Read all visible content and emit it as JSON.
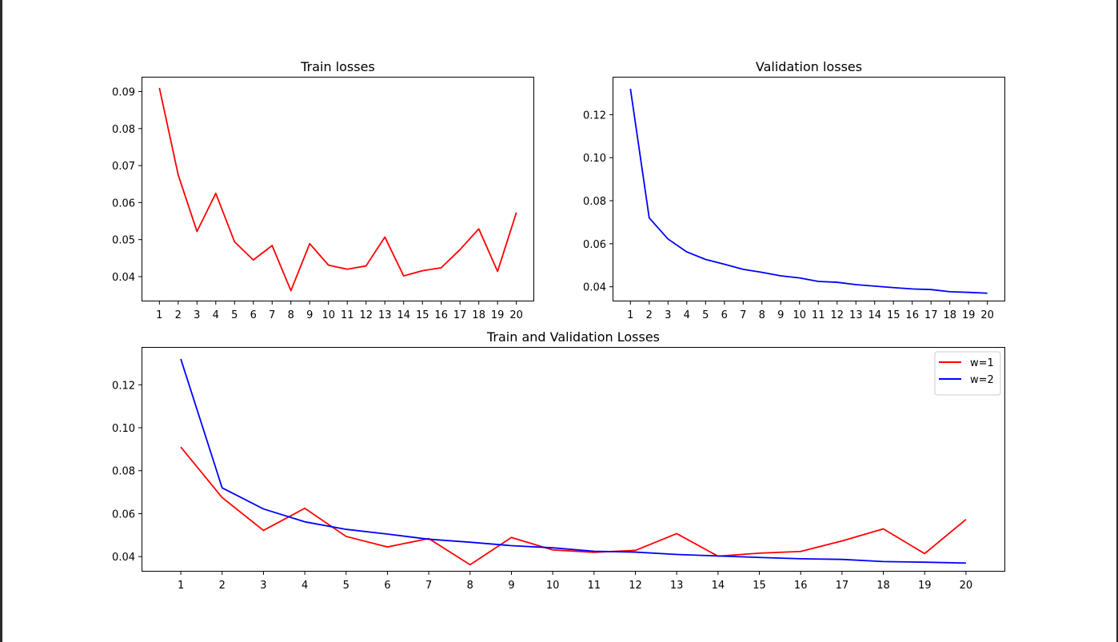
{
  "chart_data": [
    {
      "id": "train",
      "type": "line",
      "title": "Train losses",
      "xlabel": "",
      "ylabel": "",
      "x": [
        1,
        2,
        3,
        4,
        5,
        6,
        7,
        8,
        9,
        10,
        11,
        12,
        13,
        14,
        15,
        16,
        17,
        18,
        19,
        20
      ],
      "xticks": [
        "1",
        "2",
        "3",
        "4",
        "5",
        "6",
        "7",
        "8",
        "9",
        "10",
        "11",
        "12",
        "13",
        "14",
        "15",
        "16",
        "17",
        "18",
        "19",
        "20"
      ],
      "yticks": [
        "0.04",
        "0.05",
        "0.06",
        "0.07",
        "0.08",
        "0.09"
      ],
      "yticks_values": [
        0.04,
        0.05,
        0.06,
        0.07,
        0.08,
        0.09
      ],
      "xlim": [
        0.05,
        20.95
      ],
      "ylim": [
        0.0333,
        0.094
      ],
      "grid": false,
      "series": [
        {
          "color": "#ff0000",
          "values": [
            0.091,
            0.0675,
            0.0522,
            0.0625,
            0.0494,
            0.0445,
            0.0484,
            0.0362,
            0.0489,
            0.0431,
            0.042,
            0.0429,
            0.0507,
            0.0402,
            0.0416,
            0.0424,
            0.0473,
            0.0529,
            0.0414,
            0.0573
          ]
        }
      ]
    },
    {
      "id": "val",
      "type": "line",
      "title": "Validation losses",
      "xlabel": "",
      "ylabel": "",
      "x": [
        1,
        2,
        3,
        4,
        5,
        6,
        7,
        8,
        9,
        10,
        11,
        12,
        13,
        14,
        15,
        16,
        17,
        18,
        19,
        20
      ],
      "xticks": [
        "1",
        "2",
        "3",
        "4",
        "5",
        "6",
        "7",
        "8",
        "9",
        "10",
        "11",
        "12",
        "13",
        "14",
        "15",
        "16",
        "17",
        "18",
        "19",
        "20"
      ],
      "yticks": [
        "0.04",
        "0.06",
        "0.08",
        "0.10",
        "0.12"
      ],
      "yticks_values": [
        0.04,
        0.06,
        0.08,
        0.1,
        0.12
      ],
      "xlim": [
        0.05,
        20.95
      ],
      "ylim": [
        0.0332,
        0.1376
      ],
      "grid": false,
      "series": [
        {
          "color": "#0000ff",
          "values": [
            0.132,
            0.072,
            0.0622,
            0.0562,
            0.0527,
            0.0505,
            0.0481,
            0.0467,
            0.0451,
            0.0441,
            0.0425,
            0.0421,
            0.041,
            0.0403,
            0.0396,
            0.039,
            0.0387,
            0.0377,
            0.0374,
            0.037
          ]
        }
      ]
    },
    {
      "id": "combined",
      "type": "line",
      "title": "Train and Validation Losses",
      "xlabel": "",
      "ylabel": "",
      "x": [
        1,
        2,
        3,
        4,
        5,
        6,
        7,
        8,
        9,
        10,
        11,
        12,
        13,
        14,
        15,
        16,
        17,
        18,
        19,
        20
      ],
      "xticks": [
        "1",
        "2",
        "3",
        "4",
        "5",
        "6",
        "7",
        "8",
        "9",
        "10",
        "11",
        "12",
        "13",
        "14",
        "15",
        "16",
        "17",
        "18",
        "19",
        "20"
      ],
      "yticks": [
        "0.04",
        "0.06",
        "0.08",
        "0.10",
        "0.12"
      ],
      "yticks_values": [
        0.04,
        0.06,
        0.08,
        0.1,
        0.12
      ],
      "xlim": [
        0.05,
        20.95
      ],
      "ylim": [
        0.033,
        0.1376
      ],
      "grid": false,
      "legend": "top-right",
      "series": [
        {
          "name": "w=1",
          "color": "#ff0000",
          "values": [
            0.091,
            0.0675,
            0.0522,
            0.0625,
            0.0494,
            0.0445,
            0.0484,
            0.0362,
            0.0489,
            0.0431,
            0.042,
            0.0429,
            0.0507,
            0.0402,
            0.0416,
            0.0424,
            0.0473,
            0.0529,
            0.0414,
            0.0573
          ]
        },
        {
          "name": "w=2",
          "color": "#0000ff",
          "values": [
            0.132,
            0.072,
            0.0622,
            0.0562,
            0.0527,
            0.0505,
            0.0481,
            0.0467,
            0.0451,
            0.0441,
            0.0425,
            0.0421,
            0.041,
            0.0403,
            0.0396,
            0.039,
            0.0387,
            0.0377,
            0.0374,
            0.037
          ]
        }
      ]
    }
  ]
}
